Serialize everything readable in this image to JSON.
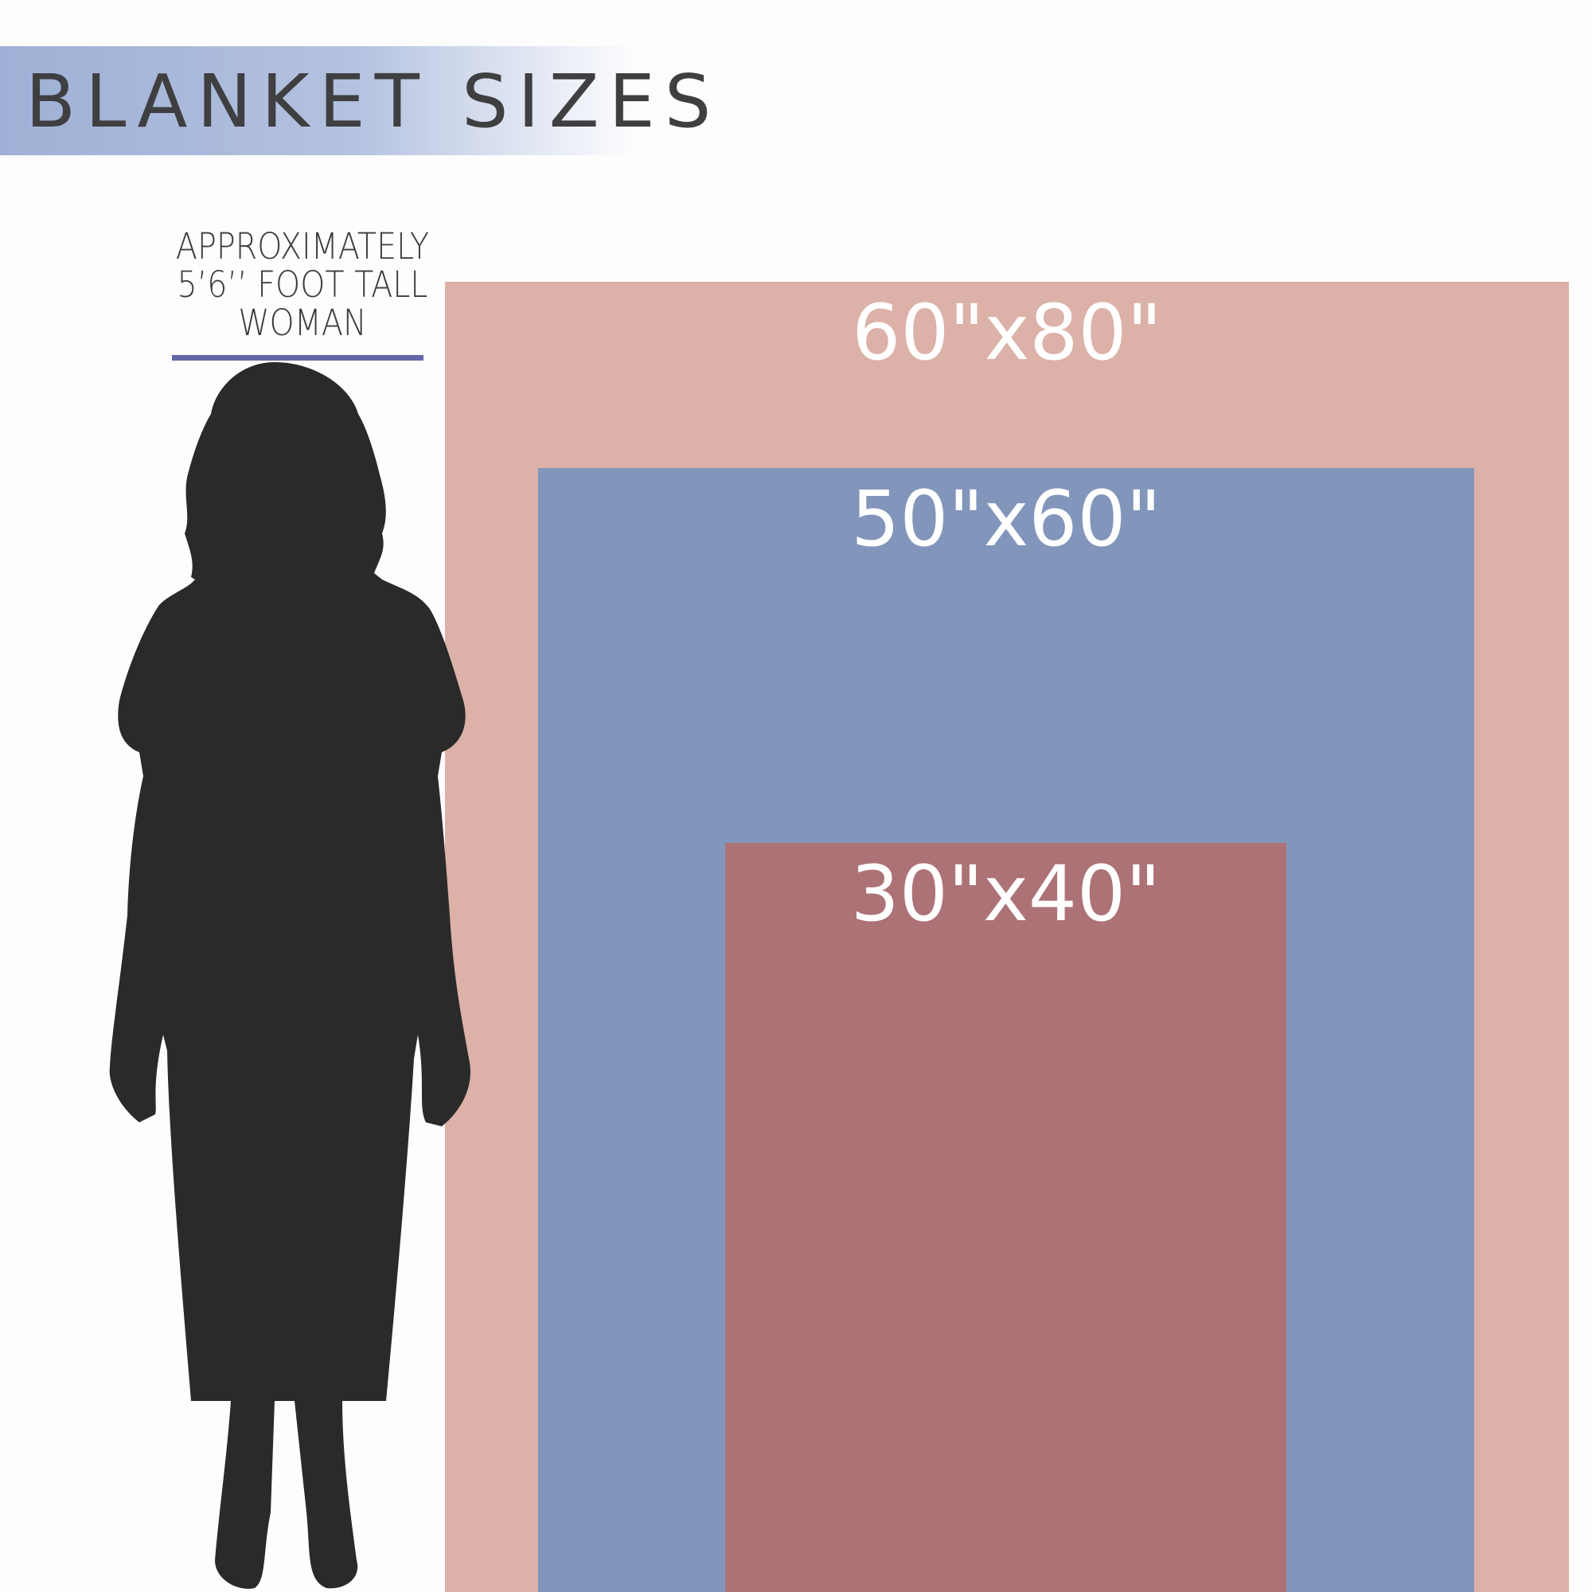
{
  "title": "BLANKET SIZES",
  "reference": {
    "lines": [
      "APPROXIMATELY",
      "5’6’’ FOOT TALL",
      "WOMAN"
    ],
    "icon": "woman-silhouette-icon"
  },
  "sizes": [
    {
      "label": "60\"x80\"",
      "color": "#dcb1a8"
    },
    {
      "label": "50\"x60\"",
      "color": "#8295bb"
    },
    {
      "label": "30\"x40\"",
      "color": "#ad7276"
    }
  ],
  "colors": {
    "title_bar": "#a4b3d8",
    "height_line": "#6468a8",
    "silhouette": "#2a2a2a"
  }
}
